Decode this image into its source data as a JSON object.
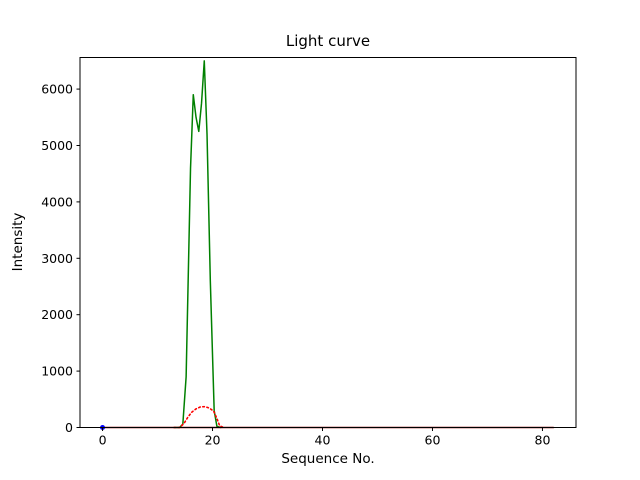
{
  "figure": {
    "background": "#ffffff"
  },
  "chart_data": {
    "type": "line",
    "title": "Light curve",
    "xlabel": "Sequence No.",
    "ylabel": "Intensity",
    "xlim": [
      -4.1,
      86.1
    ],
    "ylim": [
      0,
      6560
    ],
    "xticks": [
      0,
      20,
      40,
      60,
      80
    ],
    "yticks": [
      0,
      1000,
      2000,
      3000,
      4000,
      5000,
      6000
    ],
    "grid": false,
    "legend": false,
    "axis_color": "#000000",
    "series": [
      {
        "name": "green-curve",
        "color": "#008000",
        "style": "solid",
        "width": 1.5,
        "x": [
          13.0,
          14.0,
          14.6,
          15.2,
          16.0,
          16.5,
          17.0,
          17.5,
          18.0,
          18.5,
          19.0,
          19.6,
          20.3,
          20.8,
          21.5
        ],
        "y": [
          0,
          0,
          60,
          900,
          4600,
          5900,
          5500,
          5250,
          5750,
          6500,
          5200,
          2600,
          300,
          20,
          0
        ]
      },
      {
        "name": "red-dotted-curve",
        "color": "#ff0000",
        "style": "dotted",
        "width": 1.6,
        "x": [
          13.0,
          14.0,
          14.8,
          15.5,
          16.2,
          17.0,
          17.8,
          18.6,
          19.4,
          20.2,
          20.8,
          21.3,
          22.0
        ],
        "y": [
          0,
          0,
          70,
          180,
          270,
          330,
          365,
          370,
          345,
          290,
          160,
          30,
          0
        ]
      },
      {
        "name": "darkred-baseline",
        "color": "#8b0000",
        "style": "solid",
        "width": 1.6,
        "x": [
          0,
          82
        ],
        "y": [
          0,
          0
        ]
      },
      {
        "name": "blue-start-marker",
        "color": "#0000ff",
        "style": "marker",
        "marker_size": 2.5,
        "x": [
          0
        ],
        "y": [
          0
        ]
      }
    ]
  }
}
